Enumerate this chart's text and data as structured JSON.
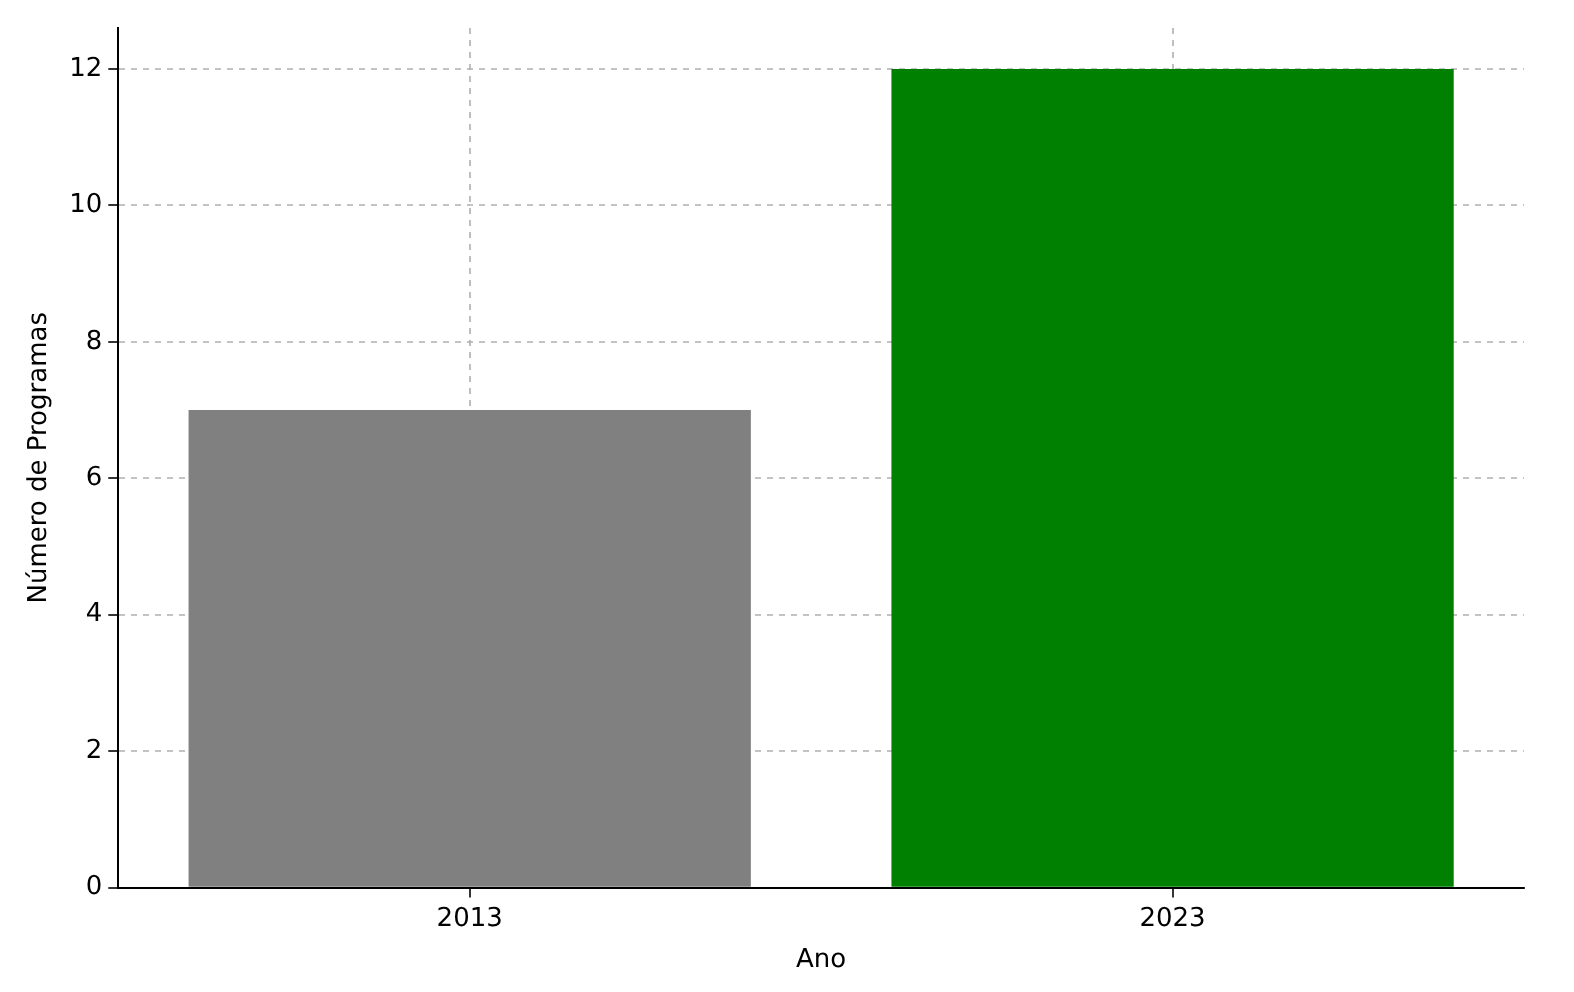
{
  "chart_data": {
    "type": "bar",
    "xlabel": "Ano",
    "ylabel": "Número de Programas",
    "categories": [
      "2013",
      "2023"
    ],
    "values": [
      7,
      12
    ],
    "colors": [
      "#808080",
      "#008000"
    ],
    "ylim": [
      0,
      12.6
    ],
    "yticks": [
      0,
      2,
      4,
      6,
      8,
      10,
      12
    ],
    "grid": true
  }
}
